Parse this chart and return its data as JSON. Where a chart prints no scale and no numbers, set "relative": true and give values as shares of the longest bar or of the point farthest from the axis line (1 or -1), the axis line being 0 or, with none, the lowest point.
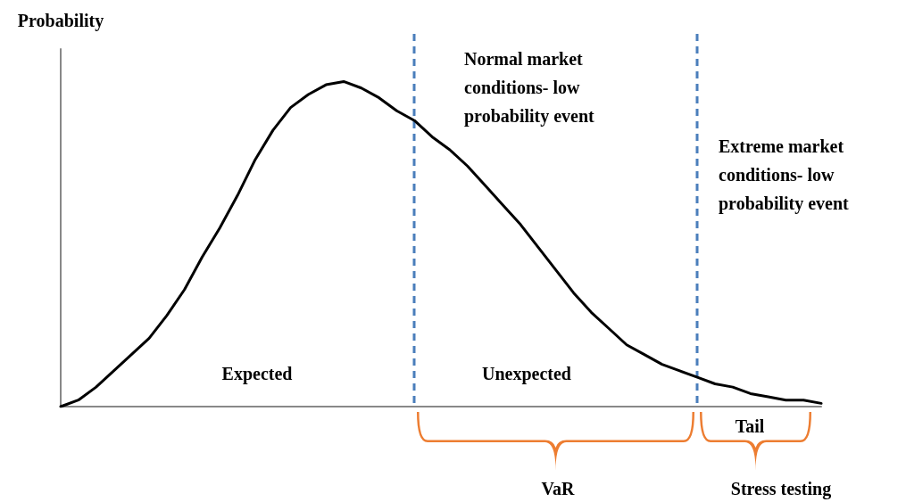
{
  "chart_data": {
    "type": "line",
    "relative": true,
    "ylabel": "Probability",
    "categories": [
      null,
      null,
      null,
      null,
      null,
      null,
      null,
      null,
      null,
      null,
      null,
      null,
      null,
      null,
      null,
      null,
      null,
      null,
      null,
      null,
      null,
      null,
      null,
      null,
      null,
      null,
      null,
      null,
      null,
      null,
      null,
      null,
      null,
      null,
      null,
      null,
      null,
      null,
      null,
      null,
      null,
      null,
      null,
      null
    ],
    "series": [
      {
        "color": "#000000",
        "values": [
          0,
          0.02,
          0.06,
          0.11,
          0.16,
          0.21,
          0.28,
          0.36,
          0.46,
          0.55,
          0.65,
          0.76,
          0.85,
          0.92,
          0.96,
          0.99,
          1,
          0.98,
          0.95,
          0.91,
          0.88,
          0.83,
          0.79,
          0.74,
          0.68,
          0.62,
          0.56,
          0.49,
          0.42,
          0.35,
          0.29,
          0.24,
          0.19,
          0.16,
          0.13,
          0.11,
          0.09,
          0.07,
          0.06,
          0.04,
          0.03,
          0.02,
          0.02,
          0.01
        ]
      }
    ],
    "marker": "none",
    "line_style": "solid",
    "annotations": [
      "Expected",
      "Unexpected",
      "Normal market conditions- low probability event",
      "Extreme market conditions- low probability event",
      "Tail",
      "VaR",
      "Stress testing"
    ]
  }
}
